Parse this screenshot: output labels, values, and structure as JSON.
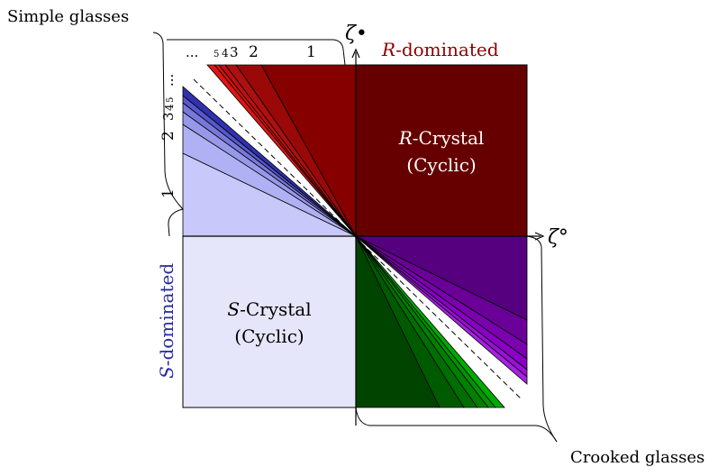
{
  "labels": {
    "simple_glasses": "Simple glasses",
    "crooked_glasses": "Crooked glasses",
    "r_dominated_prefix": "R",
    "r_dominated_suffix": "-dominated",
    "s_dominated_prefix": "S",
    "s_dominated_suffix": "-dominated",
    "r_crystal_prefix": "R",
    "r_crystal_suffix": "-Crystal",
    "r_crystal_sub": "(Cyclic)",
    "s_crystal_prefix": "S",
    "s_crystal_suffix": "-Crystal",
    "s_crystal_sub": "(Cyclic)",
    "zeta_bullet": "ζ•",
    "zeta_circle": "ζ°"
  },
  "top_ticks": [
    "1",
    "2",
    "3",
    "4",
    "5",
    "..."
  ],
  "left_ticks": [
    "1",
    "2",
    "3",
    "4",
    "5",
    "..."
  ],
  "colors": {
    "r_crystal": "#660000",
    "s_crystal": "#e6e6fa",
    "red_base": "#8b0000",
    "blue_base": "#c8c8fa",
    "purple_base": "#560080",
    "green_base": "#004400",
    "s_label": "#2a2aa0",
    "r_label": "#8b0000"
  }
}
